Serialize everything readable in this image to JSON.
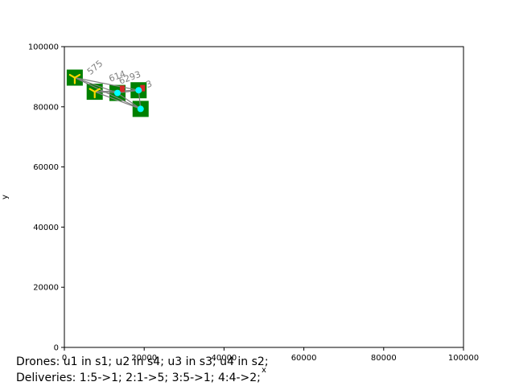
{
  "chart_data": {
    "type": "scatter",
    "xlabel": "x",
    "ylabel": "y",
    "xlim": [
      0,
      100000
    ],
    "ylim": [
      0,
      100000
    ],
    "xticks": [
      "0",
      "20000",
      "40000",
      "60000",
      "80000",
      "100000"
    ],
    "yticks": [
      "0",
      "20000",
      "40000",
      "60000",
      "80000",
      "100000"
    ],
    "tick_values": [
      0,
      20000,
      40000,
      60000,
      80000,
      100000
    ],
    "stations": [
      {
        "x": 2600,
        "y": 89700,
        "color": "#008000"
      },
      {
        "x": 7600,
        "y": 85000,
        "color": "#008000"
      },
      {
        "x": 13300,
        "y": 84600,
        "color": "#008000"
      },
      {
        "x": 18600,
        "y": 85500,
        "color": "#008000"
      },
      {
        "x": 19100,
        "y": 79300,
        "color": "#008000"
      }
    ],
    "drones": [
      {
        "x": 2600,
        "y": 89700,
        "color": "#ffd700"
      },
      {
        "x": 7600,
        "y": 85000,
        "color": "#ffd700"
      }
    ],
    "packages": [
      {
        "x": 13300,
        "y": 84600,
        "color": "#00ffff"
      },
      {
        "x": 19100,
        "y": 79300,
        "color": "#00ffff"
      },
      {
        "x": 18600,
        "y": 85500,
        "color": "#00ffff"
      }
    ],
    "markers_red": [
      {
        "x": 14500,
        "y": 86000
      },
      {
        "x": 19600,
        "y": 86200
      }
    ],
    "edges": [
      {
        "x1": 2600,
        "y1": 89700,
        "x2": 13300,
        "y2": 84600
      },
      {
        "x1": 2600,
        "y1": 89700,
        "x2": 18600,
        "y2": 85500
      },
      {
        "x1": 2600,
        "y1": 89700,
        "x2": 19100,
        "y2": 79300
      },
      {
        "x1": 7600,
        "y1": 85000,
        "x2": 13300,
        "y2": 84600
      },
      {
        "x1": 7600,
        "y1": 85000,
        "x2": 18600,
        "y2": 85500
      },
      {
        "x1": 7600,
        "y1": 85000,
        "x2": 19100,
        "y2": 79300
      },
      {
        "x1": 13300,
        "y1": 84600,
        "x2": 18600,
        "y2": 85500
      },
      {
        "x1": 13300,
        "y1": 84600,
        "x2": 19100,
        "y2": 79300
      },
      {
        "x1": 18600,
        "y1": 85500,
        "x2": 19100,
        "y2": 79300
      }
    ],
    "edge_labels": [
      {
        "text": "575",
        "x": 6500,
        "y": 90500,
        "angle": -40
      },
      {
        "text": "614",
        "x": 11500,
        "y": 88300,
        "angle": -20
      },
      {
        "text": "6293",
        "x": 14000,
        "y": 87500,
        "angle": -20
      },
      {
        "text": "3",
        "x": 20800,
        "y": 86300,
        "angle": -20
      }
    ]
  },
  "caption": {
    "line1": "Drones: u1 in s1; u2 in s4; u3 in s3; u4 in s2;",
    "line2": "Deliveries: 1:5->1; 2:1->5; 3:5->1; 4:4->2;"
  }
}
